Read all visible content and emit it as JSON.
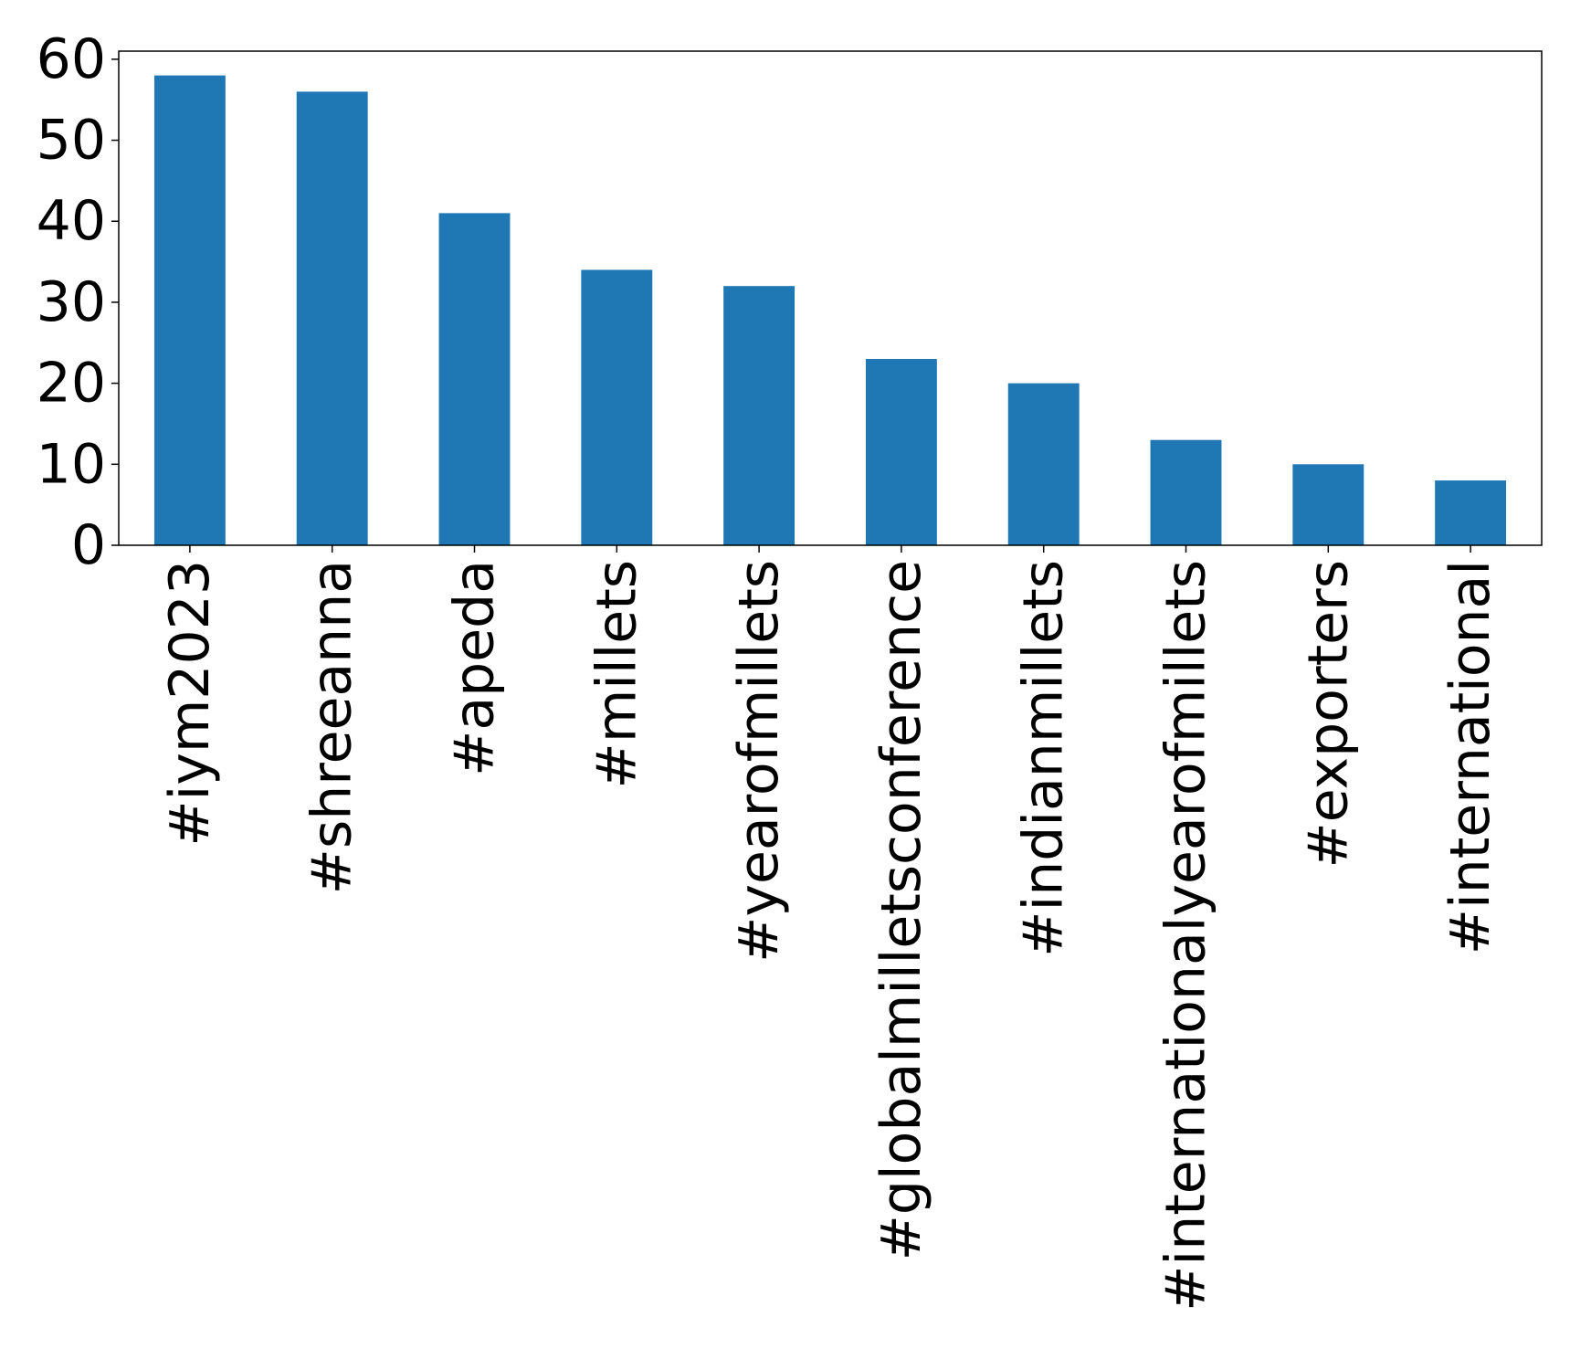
{
  "chart_data": {
    "type": "bar",
    "title": "",
    "xlabel": "",
    "ylabel": "",
    "categories": [
      "#iym2023",
      "#shreeanna",
      "#apeda",
      "#millets",
      "#yearofmillets",
      "#globalmilletsconference",
      "#indianmillets",
      "#internationalyearofmillets",
      "#exporters",
      "#international"
    ],
    "values": [
      58,
      56,
      41,
      34,
      32,
      23,
      20,
      13,
      10,
      8
    ],
    "ylim": [
      0,
      61
    ],
    "yticks": [
      0,
      10,
      20,
      30,
      40,
      50,
      60
    ],
    "bar_color": "#1f77b4",
    "grid": false,
    "legend": "none"
  }
}
